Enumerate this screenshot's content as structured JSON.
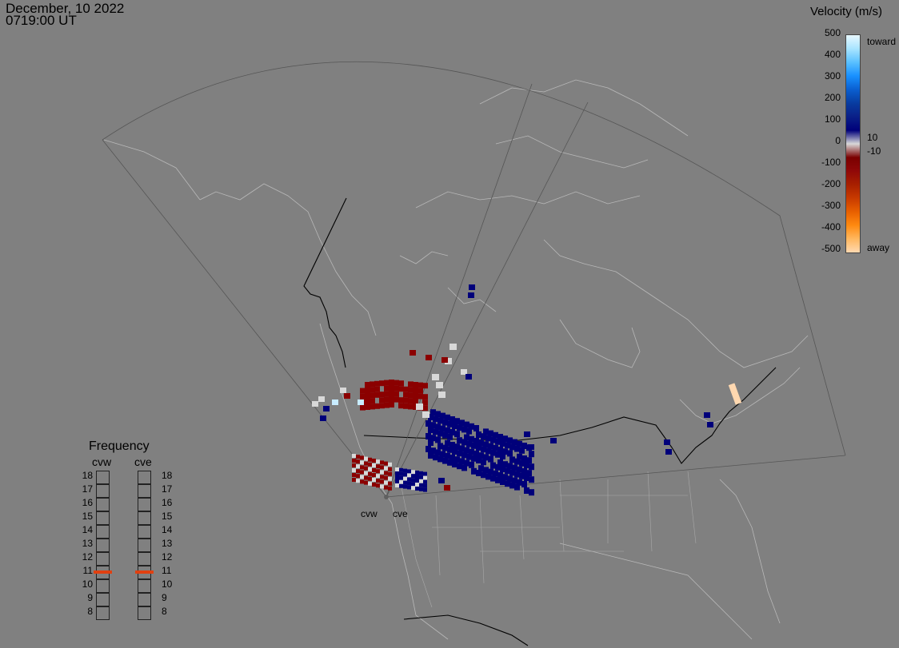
{
  "timestamp": {
    "date": "December, 10 2022",
    "time": "0719:00 UT"
  },
  "colorbar": {
    "title": "Velocity (m/s)",
    "ticks": [
      "500",
      "400",
      "300",
      "200",
      "100",
      "0",
      "-100",
      "-200",
      "-300",
      "-400",
      "-500"
    ],
    "toward_label": "toward",
    "away_label": "away",
    "small_pos": "10",
    "small_neg": "-10",
    "colors": [
      "#e8f8ff",
      "#a8e4ff",
      "#5ac0ff",
      "#1890ff",
      "#0a5fd0",
      "#083ca0",
      "#0a2088",
      "#00007a",
      "#d8d8d8",
      "#7a0000",
      "#900808",
      "#a82000",
      "#c83a00",
      "#e86000",
      "#ff8a10",
      "#ffb860",
      "#ffd8b0"
    ]
  },
  "frequency": {
    "title": "Frequency",
    "radars": [
      {
        "name": "cvw",
        "selected": 11
      },
      {
        "name": "cve",
        "selected": 11
      }
    ],
    "levels": [
      "18",
      "17",
      "16",
      "15",
      "14",
      "13",
      "12",
      "11",
      "10",
      "9",
      "8"
    ],
    "marker_color": "#e04010"
  },
  "radars": [
    {
      "code": "cvw"
    },
    {
      "code": "cve"
    }
  ]
}
